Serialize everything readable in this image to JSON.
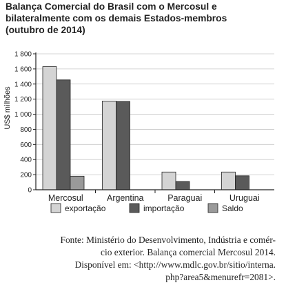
{
  "title_lines": [
    "Balança Comercial do Brasil com o Mercosul e",
    "bilateralmente com os demais Estados-membros",
    "(outubro de 2014)"
  ],
  "colors": {
    "exportacao": "#d4d4d4",
    "importacao": "#5a5a5a",
    "saldo": "#9a9a9a",
    "axis": "#222222",
    "grid": "#c8c8c8"
  },
  "chart_data": {
    "type": "bar",
    "title": "Balança Comercial do Brasil com o Mercosul e bilateralmente com os demais Estados-membros (outubro de 2014)",
    "ylabel": "US$ milhões",
    "ylim": [
      0,
      1800
    ],
    "yticks": [
      0,
      200,
      400,
      600,
      800,
      1000,
      1200,
      1400,
      1600,
      1800
    ],
    "ytick_labels": [
      "0",
      "200",
      "400",
      "600",
      "800",
      "1 000",
      "1 200",
      "1 400",
      "1 600",
      "1 800"
    ],
    "categories": [
      "Mercosul",
      "Argentina",
      "Paraguai",
      "Uruguai"
    ],
    "grid": true,
    "legend_position": "bottom",
    "series": [
      {
        "name": "exportação",
        "values": [
          1630,
          1175,
          235,
          235
        ]
      },
      {
        "name": "importação",
        "values": [
          1455,
          1170,
          110,
          185
        ]
      },
      {
        "name": "Saldo",
        "values": [
          180,
          0,
          0,
          0
        ]
      }
    ]
  },
  "source_lines": [
    "Fonte: Ministério do Desenvolvimento, Indústria e comér-",
    "cio exterior. Balança comercial Mercosul 2014.",
    "Disponível em: <http://www.mdlc.gov.br/sitio/interna.",
    "php?area5&menurefr=2081>."
  ]
}
